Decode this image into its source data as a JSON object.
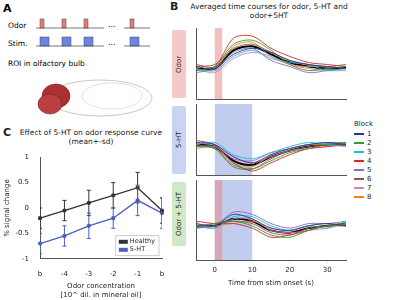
{
  "panel_a": {
    "label": "A",
    "rows": [
      "Odor",
      "Stim."
    ],
    "ellipsis": "...",
    "caption": "ROI in olfactory bulb"
  },
  "panel_b": {
    "label": "B",
    "title": "Averaged time courses for odor, 5-HT and odor+5HT",
    "legend_title": "Block"
  },
  "panel_c": {
    "label": "C"
  },
  "chart_data": [
    {
      "type": "line",
      "title": "Odor",
      "xlim": [
        -5,
        35
      ],
      "xticks": [
        0,
        10,
        20,
        30
      ],
      "ylim": [
        -1.5,
        2
      ],
      "tick_labels": false,
      "spans": [
        {
          "from": 0,
          "to": 2,
          "color": "#e58a8a"
        }
      ],
      "x": [
        -5,
        0,
        5,
        10,
        15,
        20,
        25,
        30,
        35
      ],
      "series": [
        {
          "name": "1",
          "color": "#1f3a93",
          "values": [
            0.1,
            0,
            0.7,
            1.0,
            0.8,
            0.4,
            0.2,
            0.1,
            0
          ]
        },
        {
          "name": "2",
          "color": "#2ca02c",
          "values": [
            -0.1,
            0.1,
            1.2,
            1.4,
            0.9,
            0.2,
            -0.1,
            0,
            0.1
          ]
        },
        {
          "name": "3",
          "color": "#17becf",
          "values": [
            0,
            -0.1,
            0.6,
            0.9,
            0.5,
            0.3,
            0.2,
            -0.1,
            0
          ]
        },
        {
          "name": "4",
          "color": "#d62728",
          "values": [
            0.2,
            0.1,
            1.5,
            1.6,
            1.0,
            0.6,
            0.3,
            0.2,
            0.1
          ]
        },
        {
          "name": "5",
          "color": "#9467bd",
          "values": [
            -0.2,
            0,
            0.8,
            1.0,
            0.4,
            0.1,
            -0.2,
            -0.1,
            0
          ]
        },
        {
          "name": "6",
          "color": "#8c564b",
          "values": [
            0.1,
            0.2,
            1.0,
            1.2,
            0.8,
            0.4,
            0.2,
            0.1,
            0.2
          ]
        },
        {
          "name": "7",
          "color": "#e377c2",
          "values": [
            0,
            -0.2,
            0.5,
            0.8,
            0.6,
            0.2,
            0,
            -0.1,
            -0.1
          ]
        },
        {
          "name": "8",
          "color": "#ff7f0e",
          "values": [
            -0.1,
            0,
            1.1,
            1.3,
            0.6,
            0.2,
            0.1,
            0.1,
            0
          ]
        },
        {
          "color": "#000000",
          "values": [
            0,
            0,
            0.9,
            1.1,
            0.7,
            0.3,
            0.1,
            0,
            0.05
          ]
        }
      ]
    },
    {
      "type": "line",
      "title": "5-HT",
      "xlim": [
        -5,
        35
      ],
      "xticks": [
        0,
        10,
        20,
        30
      ],
      "ylim": [
        -1.5,
        2
      ],
      "tick_labels": false,
      "spans": [
        {
          "from": 0,
          "to": 10,
          "color": "#8fa3e0"
        }
      ],
      "x": [
        -5,
        0,
        5,
        10,
        15,
        20,
        25,
        30,
        35
      ],
      "series": [
        {
          "name": "1",
          "color": "#1f3a93",
          "values": [
            0.1,
            0,
            -0.6,
            -0.9,
            -0.5,
            -0.2,
            0,
            0.1,
            0
          ]
        },
        {
          "name": "2",
          "color": "#2ca02c",
          "values": [
            -0.1,
            -0.2,
            -1.0,
            -1.2,
            -0.8,
            -0.4,
            -0.2,
            0,
            0.1
          ]
        },
        {
          "name": "3",
          "color": "#17becf",
          "values": [
            0,
            0.1,
            -0.5,
            -0.7,
            -0.4,
            -0.1,
            0.1,
            0,
            -0.1
          ]
        },
        {
          "name": "4",
          "color": "#d62728",
          "values": [
            0.2,
            0,
            -0.9,
            -1.3,
            -0.9,
            -0.5,
            -0.2,
            -0.1,
            0
          ]
        },
        {
          "name": "5",
          "color": "#9467bd",
          "values": [
            -0.1,
            -0.1,
            -0.7,
            -0.8,
            -0.4,
            -0.2,
            0,
            0.1,
            0.1
          ]
        },
        {
          "name": "6",
          "color": "#8c564b",
          "values": [
            0,
            -0.2,
            -1.1,
            -1.2,
            -0.7,
            -0.3,
            -0.1,
            0,
            0
          ]
        },
        {
          "name": "7",
          "color": "#e377c2",
          "values": [
            0.1,
            0,
            -0.6,
            -0.9,
            -0.6,
            -0.3,
            -0.2,
            -0.1,
            0
          ]
        },
        {
          "name": "8",
          "color": "#ff7f0e",
          "values": [
            -0.2,
            -0.1,
            -0.9,
            -1.1,
            -0.5,
            -0.2,
            0,
            0,
            0.1
          ]
        },
        {
          "color": "#000000",
          "values": [
            0,
            -0.1,
            -0.8,
            -1.0,
            -0.6,
            -0.3,
            -0.1,
            0,
            0
          ]
        }
      ]
    },
    {
      "type": "line",
      "title": "Odor + 5-HT",
      "xlim": [
        -5,
        35
      ],
      "xticks": [
        0,
        10,
        20,
        30
      ],
      "ylim": [
        -1.5,
        2
      ],
      "tick_labels": "x",
      "x_label": "Time from stim onset (s)",
      "spans": [
        {
          "from": 0,
          "to": 10,
          "color": "#8fa3e0"
        },
        {
          "from": 0,
          "to": 2,
          "color": "#e58a8a"
        }
      ],
      "x": [
        -5,
        0,
        5,
        10,
        15,
        20,
        25,
        30,
        35
      ],
      "series": [
        {
          "name": "1",
          "color": "#1f3a93",
          "values": [
            0.1,
            0,
            0.5,
            0.3,
            -0.1,
            -0.2,
            0,
            0.1,
            0
          ]
        },
        {
          "name": "2",
          "color": "#2ca02c",
          "values": [
            -0.1,
            0.1,
            0.2,
            0,
            -0.4,
            -0.5,
            -0.2,
            0,
            0.1
          ]
        },
        {
          "name": "3",
          "color": "#17becf",
          "values": [
            0,
            -0.1,
            0.4,
            0.4,
            0,
            -0.2,
            0,
            -0.1,
            0.2
          ]
        },
        {
          "name": "4",
          "color": "#d62728",
          "values": [
            0.2,
            0.1,
            0.1,
            -0.1,
            -0.5,
            -0.4,
            -0.2,
            0,
            0
          ]
        },
        {
          "name": "5",
          "color": "#9467bd",
          "values": [
            -0.1,
            0,
            0.6,
            0.5,
            0.1,
            -0.1,
            0.1,
            0.1,
            0.2
          ]
        },
        {
          "name": "6",
          "color": "#8c564b",
          "values": [
            0,
            0.1,
            0.2,
            0.1,
            -0.3,
            -0.4,
            -0.1,
            0,
            0
          ]
        },
        {
          "name": "7",
          "color": "#e377c2",
          "values": [
            0.1,
            -0.1,
            0.3,
            0.3,
            -0.2,
            -0.3,
            -0.2,
            -0.1,
            0.1
          ]
        },
        {
          "name": "8",
          "color": "#ff7f0e",
          "values": [
            -0.1,
            0,
            0.1,
            0.2,
            -0.1,
            -0.2,
            0,
            0.1,
            0
          ]
        },
        {
          "color": "#000000",
          "values": [
            0,
            0,
            0.3,
            0.2,
            -0.2,
            -0.3,
            -0.1,
            0,
            0.1
          ]
        }
      ]
    },
    {
      "type": "line",
      "title": "Effect of 5-HT on odor response curve (mean+-sd)",
      "categories": [
        "b",
        "-4",
        "-3",
        "-2",
        "-1",
        "b"
      ],
      "x_label": [
        "Odor concentration",
        "[10^ dil. in mineral oil]"
      ],
      "y_label": "% signal change",
      "ylim": [
        -1,
        1
      ],
      "yticks": [
        -1,
        -0.5,
        0,
        0.5,
        1
      ],
      "legend": "lower right",
      "series": [
        {
          "name": "Healthy",
          "color": "#333333",
          "values": [
            -0.2,
            -0.05,
            0.1,
            0.25,
            0.4,
            -0.05
          ],
          "errors": [
            0.2,
            0.2,
            0.25,
            0.25,
            0.3,
            0.25
          ]
        },
        {
          "name": "5-HT",
          "color": "#4a5fc1",
          "values": [
            -0.7,
            -0.55,
            -0.35,
            -0.2,
            0.15,
            -0.1
          ],
          "errors": [
            0.2,
            0.2,
            0.25,
            0.2,
            0.3,
            0.3
          ]
        }
      ]
    }
  ]
}
